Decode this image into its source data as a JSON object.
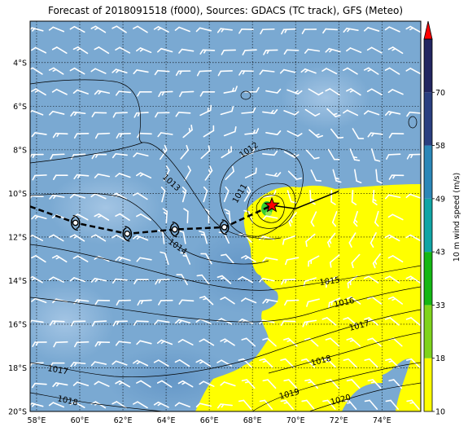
{
  "title": "Forecast of 2018091518 (f000), Sources: GDACS (TC track), GFS (Meteo)",
  "map": {
    "lon_range": [
      57.7,
      75.8
    ],
    "lat_range": [
      -20.0,
      -2.1
    ],
    "lon_ticks": [
      "58°E",
      "60°E",
      "62°E",
      "64°E",
      "66°E",
      "68°E",
      "70°E",
      "72°E",
      "74°E"
    ],
    "lat_ticks": [
      "4°S",
      "6°S",
      "8°S",
      "10°S",
      "12°S",
      "14°S",
      "16°S",
      "18°S",
      "20°S"
    ],
    "ocean_color": "#7aa9d2",
    "wind_barb_color": "#ffffff",
    "gridlines": "dotted"
  },
  "isobars": [
    {
      "label": "1011",
      "pressure": 1011
    },
    {
      "label": "1012",
      "pressure": 1012
    },
    {
      "label": "1013",
      "pressure": 1013
    },
    {
      "label": "1014",
      "pressure": 1014
    },
    {
      "label": "1015",
      "pressure": 1015
    },
    {
      "label": "1016",
      "pressure": 1016
    },
    {
      "label": "1017",
      "pressure": 1017
    },
    {
      "label": "1017",
      "pressure": 1017
    },
    {
      "label": "1018",
      "pressure": 1018
    },
    {
      "label": "1018",
      "pressure": 1018
    },
    {
      "label": "1019",
      "pressure": 1019
    },
    {
      "label": "1020",
      "pressure": 1020
    }
  ],
  "track": {
    "past_points": [
      {
        "lon": 59.8,
        "lat": -11.35
      },
      {
        "lon": 62.2,
        "lat": -11.85
      },
      {
        "lon": 64.4,
        "lat": -11.65
      },
      {
        "lon": 66.7,
        "lat": -11.55
      }
    ],
    "current": {
      "lon": 68.9,
      "lat": -10.55
    },
    "forecast_path": [
      {
        "lon": 68.9,
        "lat": -10.55
      },
      {
        "lon": 70.0,
        "lat": -10.7
      },
      {
        "lon": 72.0,
        "lat": -9.9
      }
    ],
    "current_color": "#ff0000"
  },
  "colorbar": {
    "label": "10 m wind speed (m/s)",
    "levels": [
      "10",
      "18",
      "33",
      "43",
      "49",
      "58",
      "70"
    ],
    "colors": [
      "#ffff00",
      "#7fd41c",
      "#14b814",
      "#11a5a5",
      "#2b87b8",
      "#2a3f80",
      "#222661"
    ],
    "extend_color": "#ff0000"
  }
}
